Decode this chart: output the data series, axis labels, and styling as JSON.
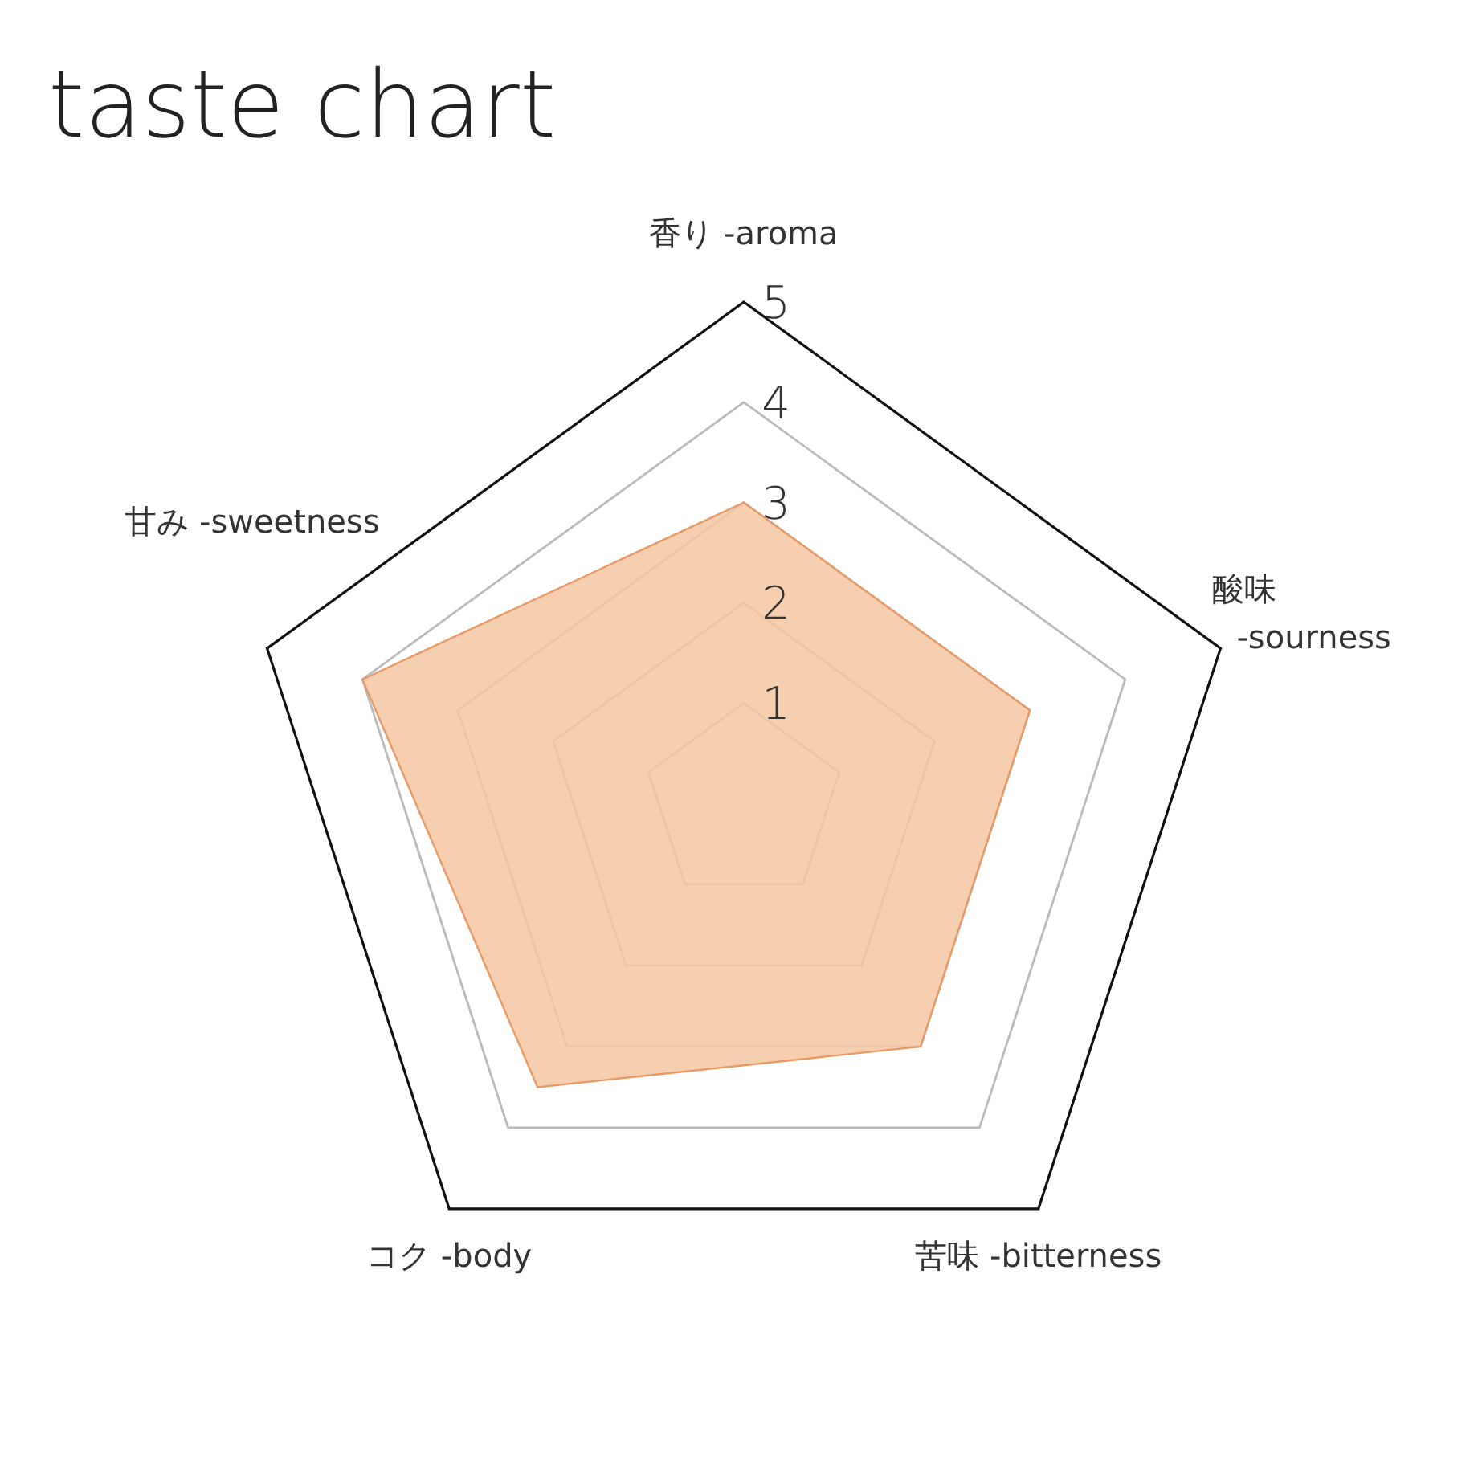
{
  "chart_data": {
    "type": "radar",
    "title": "taste chart",
    "categories": [
      "香り -aroma",
      "酸味 -sourness",
      "苦味 -bitterness",
      "コク -body",
      "甘み -sweetness"
    ],
    "series": [
      {
        "color": "#f5c7a3",
        "values": [
          3,
          3,
          3,
          3.5,
          4
        ]
      }
    ],
    "ylim": [
      0,
      5
    ],
    "yticks": [
      1,
      2,
      3,
      4,
      5
    ],
    "grid": true
  }
}
